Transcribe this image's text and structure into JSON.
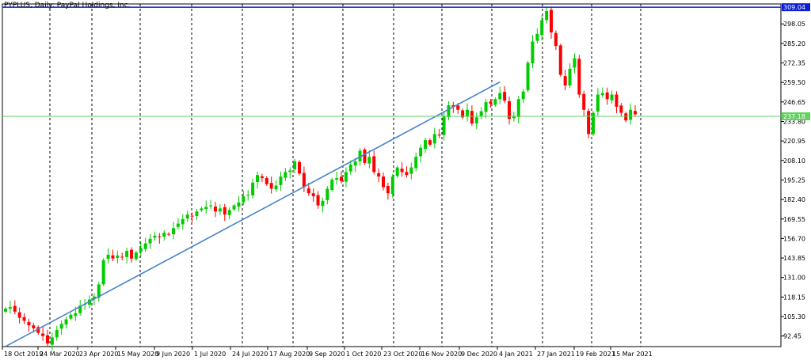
{
  "chart_data": {
    "type": "candlestick",
    "title": "PYPLUS, Daily:  PayPal Holdings, Inc.",
    "x_ticks": [
      "18 Oct 2019",
      "24 Mar 2020",
      "23 Apr 2020",
      "15 May 2020",
      "9 Jun 2020",
      "1 Jul 2020",
      "24 Jul 2020",
      "17 Aug 2020",
      "9 Sep 2020",
      "1 Oct 2020",
      "23 Oct 2020",
      "16 Nov 2020",
      "9 Dec 2020",
      "4 Jan 2021",
      "27 Jan 2021",
      "19 Feb 2021",
      "15 Mar 2021"
    ],
    "y_ticks": [
      92.45,
      105.3,
      118.15,
      131.0,
      143.85,
      156.7,
      169.55,
      182.4,
      195.25,
      208.1,
      220.95,
      233.8,
      246.65,
      259.5,
      272.35,
      285.2,
      298.05
    ],
    "ylim": [
      85.5,
      311.2
    ],
    "resistance_level": {
      "value": 309.04,
      "label": "309.04",
      "color": "#0a1fd6"
    },
    "support_level": {
      "value": 237.18,
      "label": "237.18",
      "color": "#5fd35f"
    },
    "trendline": {
      "start": {
        "bar": 0,
        "price": 85.6
      },
      "end": {
        "bar": 106,
        "price": 259.8
      },
      "color": "#4a86c8"
    },
    "colors": {
      "up": "#00cc00",
      "down": "#ff0000",
      "grid": "#000000"
    },
    "close_estimates": [
      110.5,
      111.5,
      108.5,
      104.5,
      102.5,
      99.5,
      97.5,
      94.5,
      92.5,
      87.5,
      91.5,
      96.5,
      100.5,
      103.5,
      106.5,
      107.5,
      112.5,
      113.5,
      116.5,
      118.5,
      126.5,
      142.5,
      146.0,
      143.5,
      145.5,
      144.5,
      148.5,
      143.5,
      147.5,
      150.5,
      153.5,
      156.5,
      158.5,
      157.5,
      160.5,
      159.5,
      163.5,
      166.5,
      169.5,
      172.5,
      171.5,
      174.5,
      176.5,
      177.5,
      178.5,
      174.5,
      176.5,
      172.5,
      175.5,
      178.5,
      180.5,
      184.5,
      185.5,
      193.5,
      198.5,
      196.5,
      192.5,
      189.5,
      191.5,
      197.5,
      200.5,
      201.5,
      207.5,
      199.5,
      190.5,
      186.5,
      184.5,
      178.5,
      181.5,
      189.5,
      195.5,
      196.5,
      194.5,
      200.5,
      205.5,
      207.5,
      214.5,
      206.5,
      210.5,
      200.5,
      197.5,
      190.5,
      186.5,
      197.5,
      203.5,
      200.5,
      198.5,
      203.5,
      210.5,
      216.5,
      221.5,
      218.5,
      225.5,
      224.5,
      237.5,
      244.5,
      243.5,
      241.5,
      236.5,
      241.5,
      232.5,
      236.5,
      240.5,
      246.5,
      245.5,
      248.5,
      252.5,
      247.5,
      235.5,
      237.5,
      248.5,
      253.5,
      272.5,
      286.5,
      291.5,
      300.5,
      306.5,
      292.5,
      283.5,
      264.5,
      257.5,
      268.5,
      275.5,
      251.5,
      241.5,
      225.5,
      239.5,
      251.5,
      252.5,
      248.5,
      251.5,
      243.5,
      239.5,
      234.5,
      241.5,
      238.5
    ]
  }
}
